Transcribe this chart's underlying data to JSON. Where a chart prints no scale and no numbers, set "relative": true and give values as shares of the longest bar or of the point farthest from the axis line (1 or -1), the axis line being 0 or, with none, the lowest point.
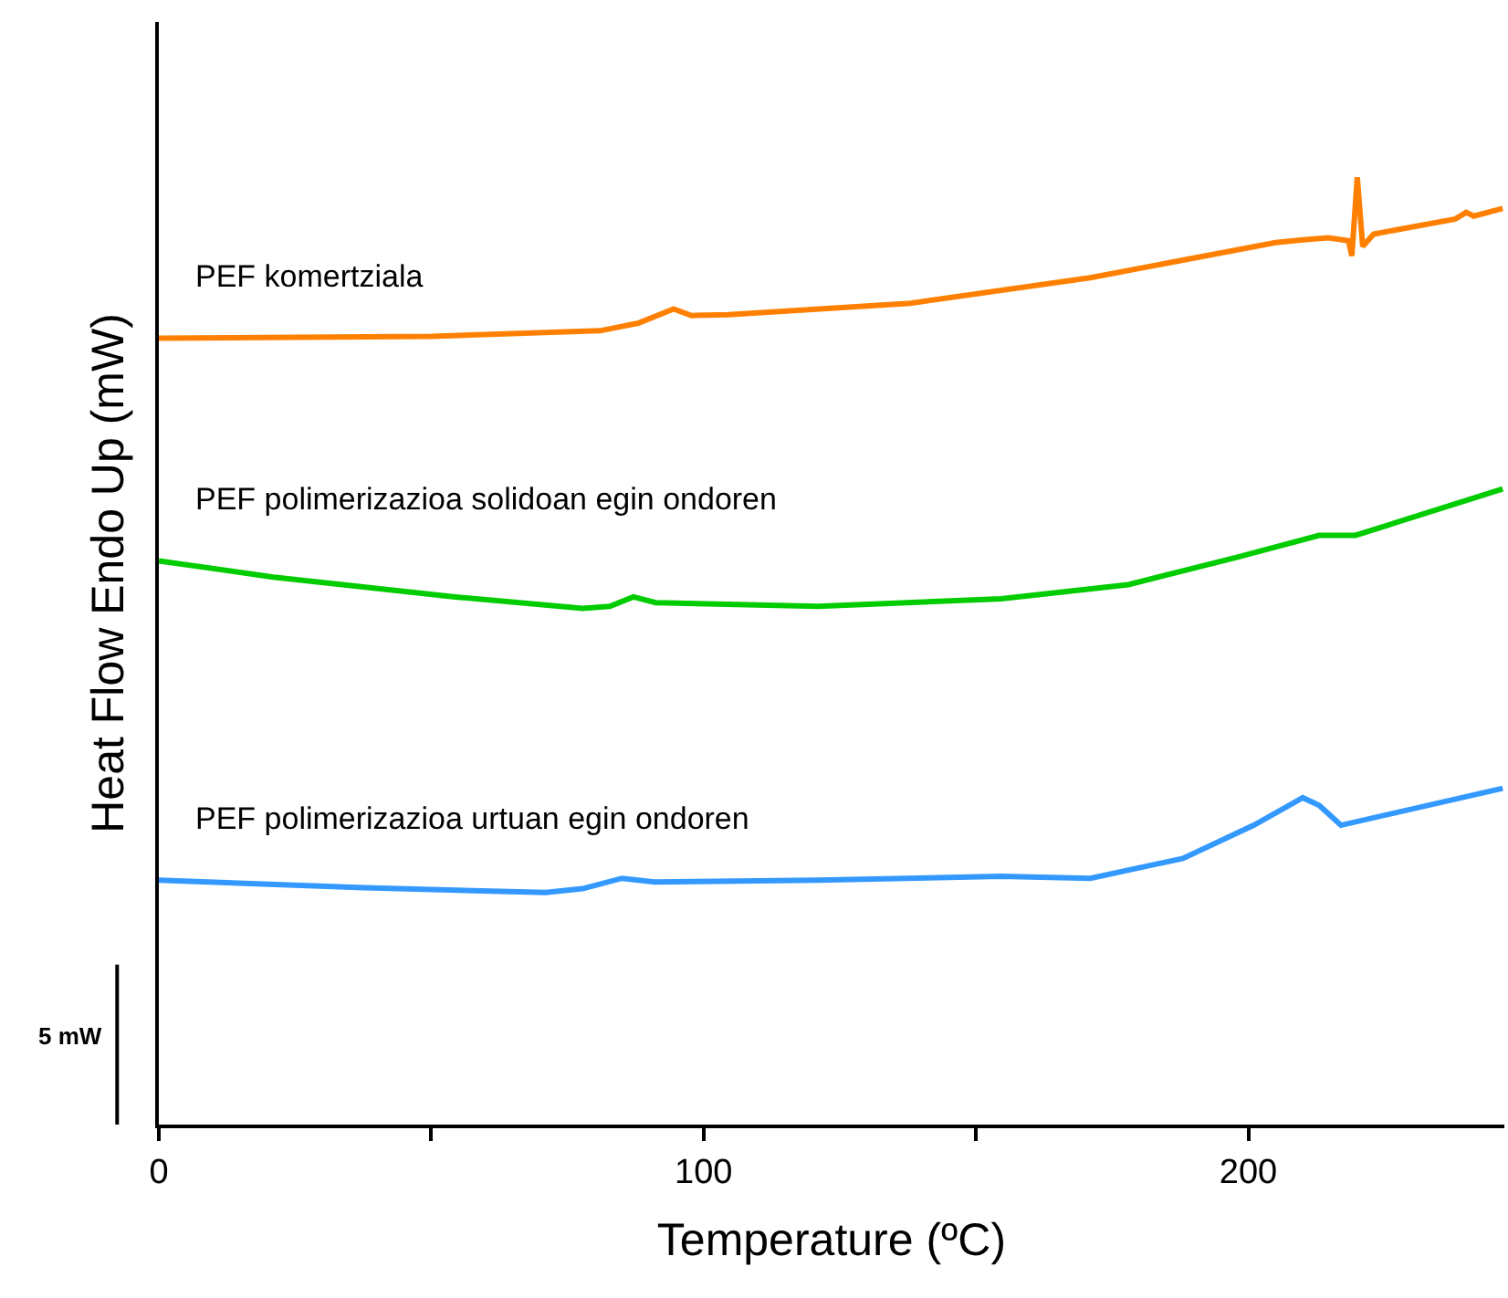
{
  "chart_data": {
    "type": "line",
    "relative": true,
    "xlabel": "Temperature (ºC)",
    "ylabel": "Heat Flow Endo Up (mW)",
    "xlim": [
      0,
      247
    ],
    "xticks": [
      0,
      {
        "value": 50,
        "label": null
      },
      100,
      {
        "value": 150,
        "label": null
      },
      200
    ],
    "annotations": [
      "5 mW"
    ],
    "series": [
      {
        "name": "PEF komertziala",
        "color": "#ff8000",
        "x": [
          0,
          50,
          81,
          88,
          94.5,
          97.8,
          104.5,
          138,
          171,
          205,
          210,
          214.7,
          218.4,
          219,
          220,
          221,
          223,
          238,
          240,
          241.4,
          246.7
        ],
        "values": [
          0.83,
          0.832,
          0.838,
          0.846,
          0.861,
          0.854,
          0.855,
          0.867,
          0.894,
          0.931,
          0.934,
          0.936,
          0.933,
          0.917,
          1.0,
          0.927,
          0.94,
          0.956,
          0.963,
          0.959,
          0.967
        ]
      },
      {
        "name": "PEF polimerizazioa solidoan egin ondoren",
        "color": "#00cc00",
        "x": [
          0,
          21,
          54.4,
          77.8,
          82.8,
          87.1,
          91.2,
          121,
          154.6,
          178,
          198,
          213,
          219.7,
          246.7
        ],
        "values": [
          0.595,
          0.578,
          0.557,
          0.545,
          0.547,
          0.557,
          0.551,
          0.547,
          0.555,
          0.57,
          0.599,
          0.622,
          0.622,
          0.671
        ]
      },
      {
        "name": "PEF polimerizazioa urtuan egin ondoren",
        "color": "#3399ff",
        "x": [
          0,
          37.7,
          71,
          77.8,
          85,
          91,
          121,
          154.6,
          171,
          188,
          201,
          210,
          213,
          217,
          246.7
        ],
        "values": [
          0.258,
          0.25,
          0.245,
          0.249,
          0.26,
          0.256,
          0.258,
          0.262,
          0.26,
          0.281,
          0.316,
          0.345,
          0.337,
          0.316,
          0.355
        ]
      }
    ]
  }
}
